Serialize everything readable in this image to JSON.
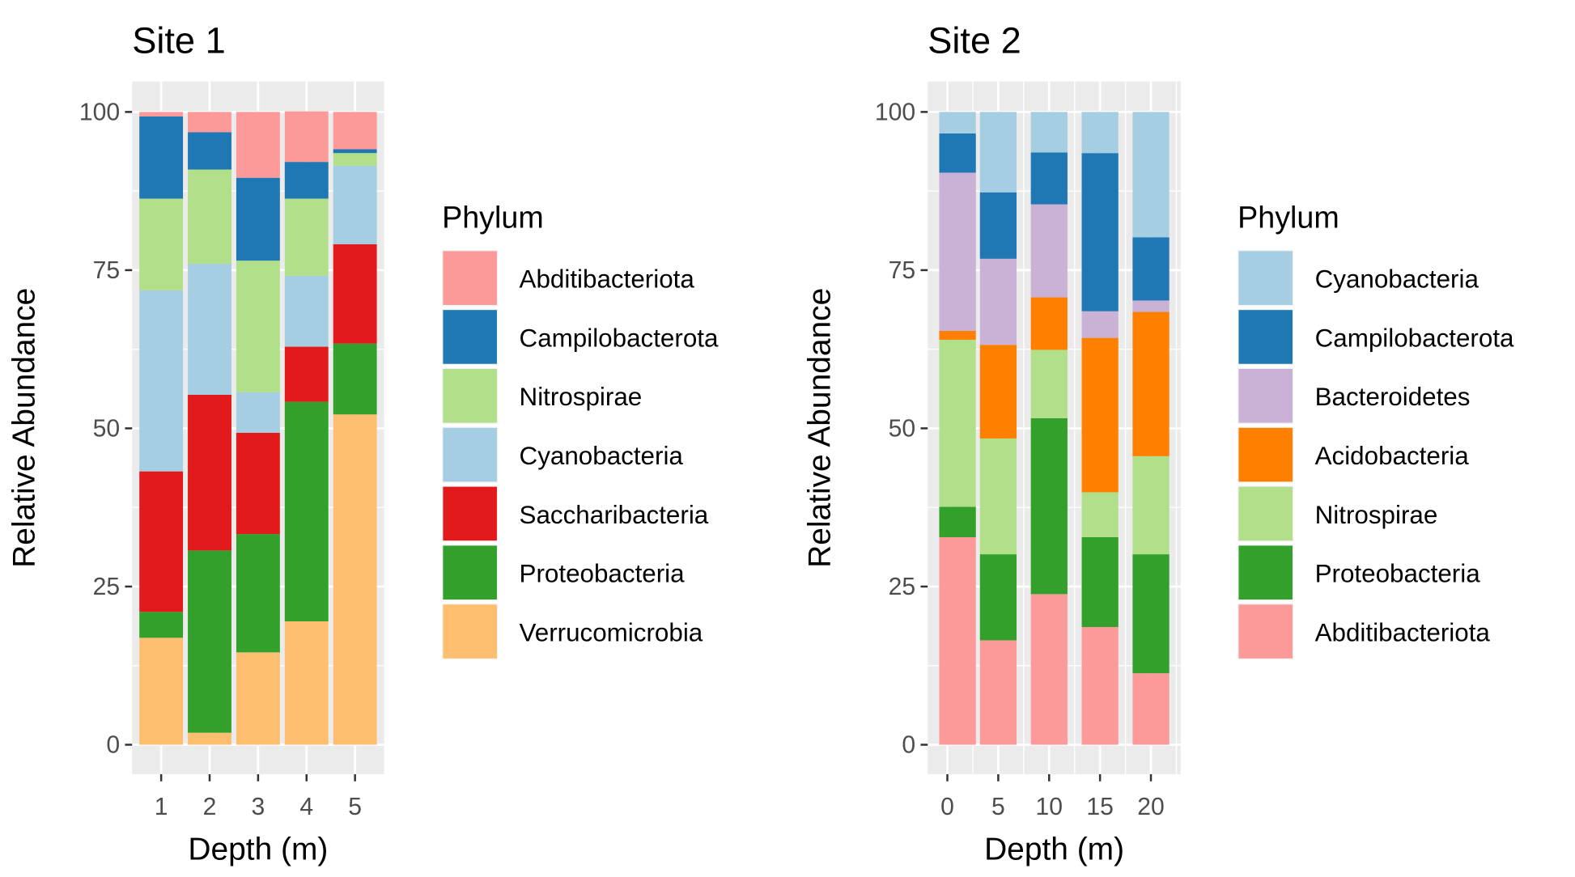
{
  "colors": {
    "Abditibacteriota": "#FB9A99",
    "Campilobacterota": "#1F78B4",
    "Nitrospirae": "#B2DF8A",
    "Cyanobacteria": "#A6CEE3",
    "Saccharibacteria": "#E31A1C",
    "Proteobacteria": "#33A02C",
    "Verrucomicrobia": "#FDBF6F",
    "Bacteroidetes": "#CAB2D6",
    "Acidobacteria": "#FF7F00"
  },
  "chart_data": [
    {
      "type": "bar",
      "stacked": true,
      "title": "Site 1",
      "xlabel": "Depth (m)",
      "ylabel": "Relative Abundance",
      "x_scale": "discrete",
      "categories": [
        "1",
        "2",
        "3",
        "4",
        "5"
      ],
      "ylim": [
        0,
        100
      ],
      "yticks": [
        0,
        25,
        50,
        75,
        100
      ],
      "grid": true,
      "legend_title": "Phylum",
      "legend_placement": "right",
      "series": [
        {
          "name": "Abditibacteriota",
          "values": [
            0.7,
            3.2,
            10.4,
            8.0,
            5.9
          ]
        },
        {
          "name": "Campilobacterota",
          "values": [
            13.0,
            5.9,
            13.1,
            5.8,
            0.6
          ]
        },
        {
          "name": "Nitrospirae",
          "values": [
            14.5,
            14.9,
            20.8,
            12.2,
            2.0
          ]
        },
        {
          "name": "Cyanobacteria",
          "values": [
            28.6,
            20.7,
            6.4,
            11.2,
            12.4
          ]
        },
        {
          "name": "Saccharibacteria",
          "values": [
            22.2,
            24.6,
            16.0,
            8.7,
            15.7
          ]
        },
        {
          "name": "Proteobacteria",
          "values": [
            4.1,
            28.8,
            18.7,
            34.7,
            11.2
          ]
        },
        {
          "name": "Verrucomicrobia",
          "values": [
            16.9,
            1.9,
            14.6,
            19.5,
            52.2
          ]
        }
      ]
    },
    {
      "type": "bar",
      "stacked": true,
      "title": "Site 2",
      "xlabel": "Depth (m)",
      "ylabel": "Relative Abundance",
      "x_scale": "continuous",
      "x": [
        1,
        5,
        10,
        15,
        20
      ],
      "xticks": [
        0,
        5,
        10,
        15,
        20
      ],
      "ylim": [
        0,
        100
      ],
      "yticks": [
        0,
        25,
        50,
        75,
        100
      ],
      "grid": true,
      "legend_title": "Phylum",
      "legend_placement": "right",
      "series": [
        {
          "name": "Cyanobacteria",
          "values": [
            3.4,
            12.7,
            6.4,
            6.5,
            19.8
          ]
        },
        {
          "name": "Campilobacterota",
          "values": [
            6.2,
            10.5,
            8.2,
            25.0,
            10.0
          ]
        },
        {
          "name": "Bacteroidetes",
          "values": [
            25.0,
            13.6,
            14.7,
            4.2,
            1.8
          ]
        },
        {
          "name": "Acidobacteria",
          "values": [
            1.4,
            14.8,
            8.3,
            24.4,
            22.8
          ]
        },
        {
          "name": "Nitrospirae",
          "values": [
            26.4,
            18.3,
            10.8,
            7.1,
            15.5
          ]
        },
        {
          "name": "Proteobacteria",
          "values": [
            4.8,
            13.6,
            27.8,
            14.2,
            18.8
          ]
        },
        {
          "name": "Abditibacteriota",
          "values": [
            32.8,
            16.5,
            23.8,
            18.6,
            11.3
          ]
        }
      ]
    }
  ]
}
